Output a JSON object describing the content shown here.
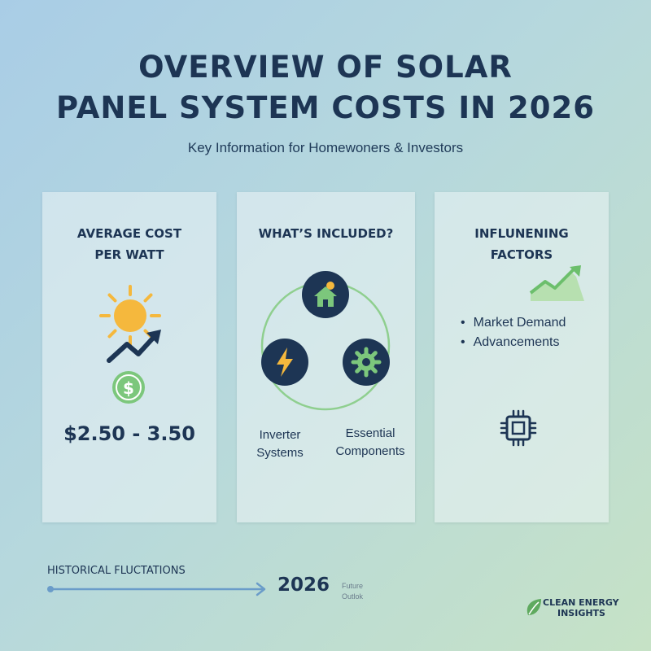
{
  "header": {
    "title_line1": "OVERVIEW OF SOLAR",
    "title_line2": "PANEL SYSTEM COSTS IN 2026",
    "subtitle": "Key Information for Homewoners & Investors"
  },
  "cards": {
    "cost": {
      "title_line1": "AVERAGE COST",
      "title_line2": "PER WATT",
      "price": "$2.50 - 3.50",
      "icons": [
        "sun-icon",
        "rising-arrow-icon",
        "dollar-coin-icon"
      ]
    },
    "included": {
      "title": "WHAT’S INCLUDED?",
      "item1_line1": "Inverter",
      "item1_line2": "Systems",
      "item2_line1": "Essential",
      "item2_line2": "Components",
      "icons": [
        "solar-house-icon",
        "lightning-icon",
        "gear-icon"
      ]
    },
    "factors": {
      "title_line1": "INFLUNENING",
      "title_line2": "FACTORS",
      "bullets": [
        "Market Demand",
        "Advancements"
      ],
      "icons": [
        "growth-chart-icon",
        "microchip-icon"
      ]
    }
  },
  "timeline": {
    "label": "HISTORICAL FLUCTATIONS",
    "year": "2026",
    "note_line1": "Future",
    "note_line2": "Outlok"
  },
  "brand": {
    "line1": "CLEAN ENERGY",
    "line2": "INSIGHTS",
    "icon": "leaf-icon"
  },
  "colors": {
    "navy": "#1d3554",
    "sun": "#f5b83d",
    "green": "#6cbf6c",
    "blue_line": "#6a9cc9"
  }
}
